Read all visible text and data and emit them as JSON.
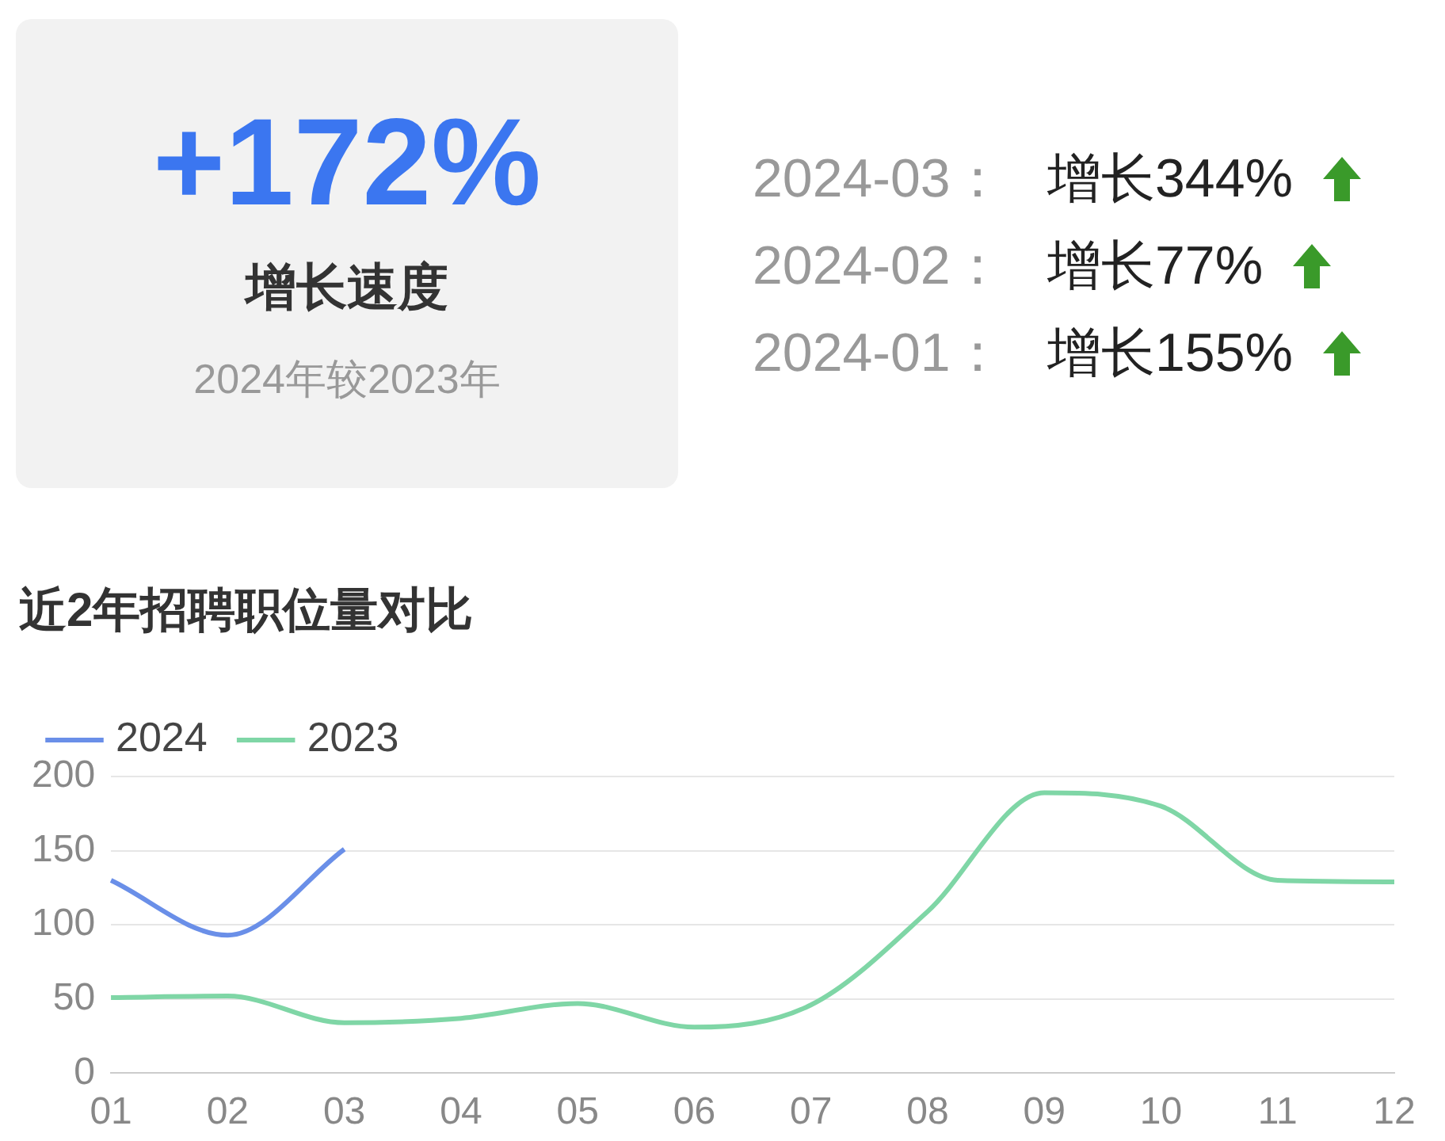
{
  "chart_data": [
    {
      "type": "other",
      "title": "+172%",
      "subtitle": "增长速度",
      "annotations": [
        "2024年较2023年",
        "2024-03：",
        "增长344%",
        "2024-02：",
        "增长77%",
        "2024-01：",
        "增长155%"
      ]
    },
    {
      "type": "line",
      "title": "近2年招聘职位量对比",
      "categories": [
        "01",
        "02",
        "03",
        "04",
        "05",
        "06",
        "07",
        "08",
        "09",
        "10",
        "11",
        "12"
      ],
      "series": [
        {
          "name": "2024",
          "color": "#6a8fe8",
          "values": [
            130,
            93,
            151,
            null,
            null,
            null,
            null,
            null,
            null,
            null,
            null,
            null
          ]
        },
        {
          "name": "2023",
          "color": "#7fd6a6",
          "values": [
            51,
            52,
            34,
            37,
            47,
            31,
            46,
            109,
            189,
            180,
            130,
            129
          ]
        }
      ],
      "ylim": [
        0,
        200
      ],
      "yticks": [
        0,
        50,
        100,
        150,
        200
      ],
      "grid": "y",
      "legend": "top left",
      "marker": "none",
      "line_style": "solid"
    }
  ]
}
